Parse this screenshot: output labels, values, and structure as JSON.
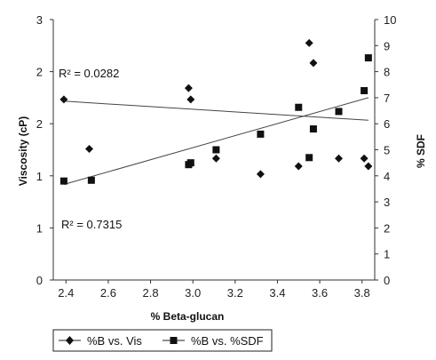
{
  "chart_data": {
    "type": "scatter",
    "xlabel": "% Beta-glucan",
    "ylabel": "Viscosity (cP)",
    "y2label": "% SDF",
    "xlim": [
      2.34,
      3.86
    ],
    "ylim": [
      0,
      3
    ],
    "y2lim": [
      0,
      10
    ],
    "xticks": [
      "2.4",
      "2.6",
      "2.8",
      "3.0",
      "3.2",
      "3.4",
      "3.6",
      "3.8"
    ],
    "yticks": [
      "0",
      "1",
      "1",
      "2",
      "2",
      "3"
    ],
    "y2ticks": [
      "0",
      "1",
      "2",
      "3",
      "4",
      "5",
      "6",
      "7",
      "8",
      "9",
      "10"
    ],
    "grid": false,
    "legend_position": "bottom-left",
    "annotations": [
      "R² = 0.0282",
      "R² = 0.7315"
    ],
    "series": [
      {
        "name": "%B vs. Vis",
        "marker": "diamond",
        "axis": "left",
        "points": [
          [
            2.39,
            2.08
          ],
          [
            2.51,
            1.51
          ],
          [
            2.98,
            2.21
          ],
          [
            2.99,
            2.08
          ],
          [
            3.11,
            1.4
          ],
          [
            3.32,
            1.22
          ],
          [
            3.5,
            1.31
          ],
          [
            3.55,
            2.73
          ],
          [
            3.57,
            2.5
          ],
          [
            3.69,
            1.4
          ],
          [
            3.81,
            1.4
          ],
          [
            3.83,
            1.31
          ]
        ]
      },
      {
        "name": "%B vs. %SDF",
        "marker": "square",
        "axis": "right",
        "points": [
          [
            2.39,
            3.8
          ],
          [
            2.52,
            3.83
          ],
          [
            2.98,
            4.43
          ],
          [
            2.99,
            4.5
          ],
          [
            3.11,
            5.0
          ],
          [
            3.32,
            5.6
          ],
          [
            3.5,
            6.63
          ],
          [
            3.55,
            4.7
          ],
          [
            3.57,
            5.8
          ],
          [
            3.69,
            6.47
          ],
          [
            3.81,
            7.27
          ],
          [
            3.83,
            8.53
          ]
        ]
      }
    ],
    "trendlines": [
      {
        "axis": "left",
        "from": [
          2.39,
          2.06
        ],
        "to": [
          3.83,
          1.84
        ]
      },
      {
        "axis": "right",
        "from": [
          2.39,
          3.67
        ],
        "to": [
          3.83,
          7.0
        ]
      }
    ]
  }
}
